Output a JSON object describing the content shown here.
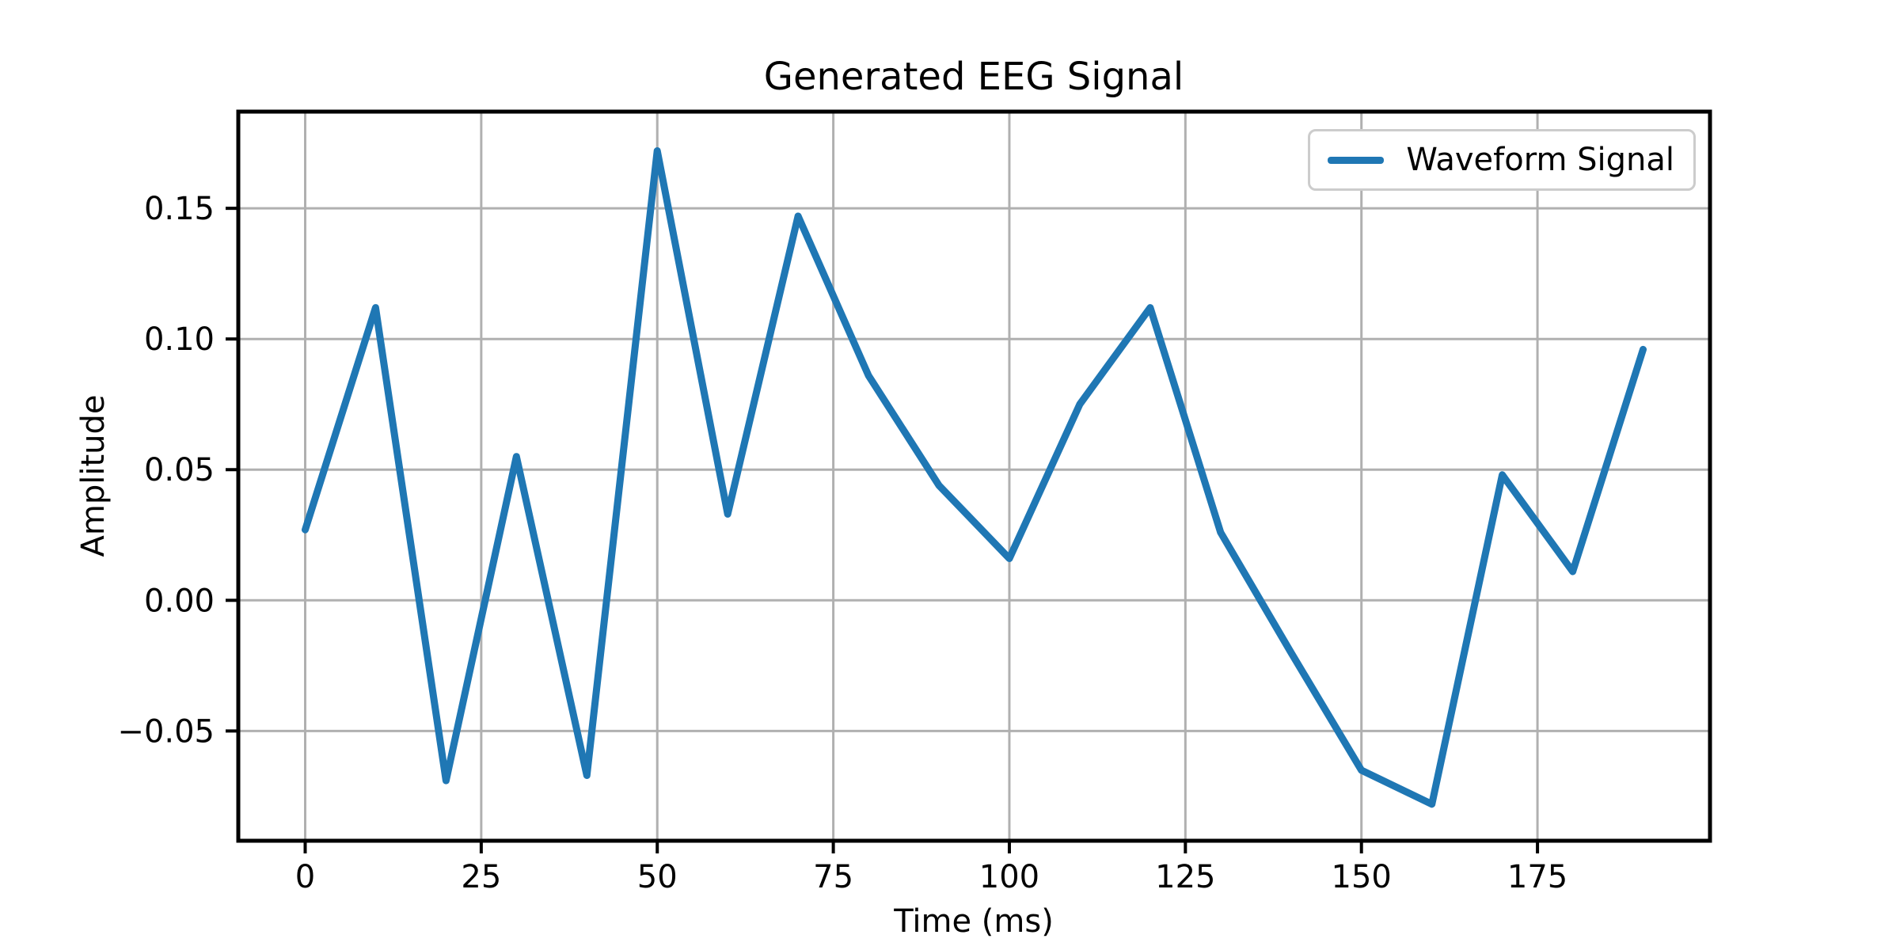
{
  "figure": {
    "title": "Generated EEG Signal",
    "xlabel": "Time (ms)",
    "ylabel": "Amplitude",
    "background_color": "#ffffff"
  },
  "legend": {
    "label": "Waveform Signal",
    "line_color": "#1f77b4",
    "border_color": "#cccccc",
    "position": "upper right"
  },
  "axes": {
    "x_tick_labels": [
      "0",
      "25",
      "50",
      "75",
      "100",
      "125",
      "150",
      "175"
    ],
    "y_tick_labels": [
      "0.15",
      "0.10",
      "0.05",
      "0.00",
      "−0.05"
    ],
    "x_tick_values": [
      0,
      25,
      50,
      75,
      100,
      125,
      150,
      175
    ],
    "y_tick_values": [
      0.15,
      0.1,
      0.05,
      0.0,
      -0.05
    ],
    "grid_color": "#b0b0b0",
    "spine_color": "#000000",
    "tick_color": "#000000"
  },
  "chart_data": {
    "type": "line",
    "title": "Generated EEG Signal",
    "xlabel": "Time (ms)",
    "ylabel": "Amplitude",
    "legend": [
      "Waveform Signal"
    ],
    "legend_position": "upper right",
    "grid": true,
    "line_color": "#1f77b4",
    "x": [
      0,
      10,
      20,
      30,
      40,
      50,
      60,
      70,
      80,
      90,
      100,
      110,
      120,
      130,
      140,
      150,
      160,
      170,
      180,
      190
    ],
    "y": [
      0.027,
      0.112,
      -0.069,
      0.055,
      -0.067,
      0.172,
      0.033,
      0.147,
      0.086,
      0.044,
      0.016,
      0.075,
      0.112,
      0.026,
      -0.02,
      -0.065,
      -0.078,
      0.048,
      0.011,
      0.096
    ],
    "xlim": [
      -9.5,
      199.5
    ],
    "ylim": [
      -0.092,
      0.187
    ],
    "x_ticks": [
      0,
      25,
      50,
      75,
      100,
      125,
      150,
      175
    ],
    "y_ticks": [
      0.15,
      0.1,
      0.05,
      0.0,
      -0.05
    ]
  }
}
